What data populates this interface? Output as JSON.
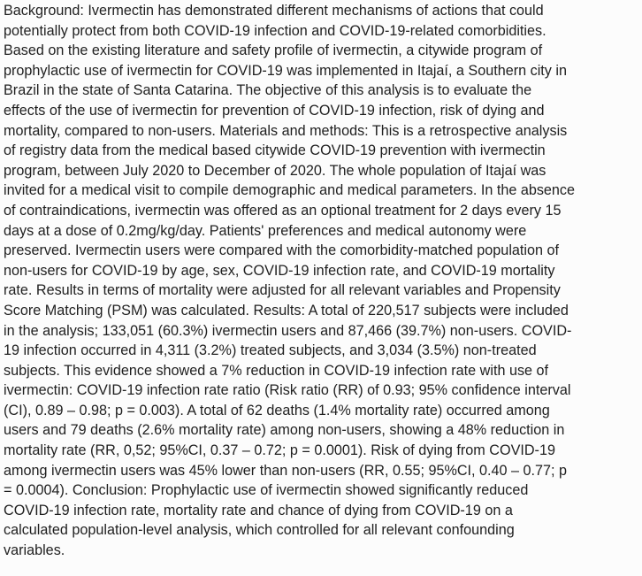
{
  "abstract": {
    "lines": [
      "Background: Ivermectin has demonstrated different mechanisms of actions that could",
      "potentially protect from both COVID-19 infection and COVID-19-related comorbidities.",
      "Based on the existing literature and safety profile of ivermectin, a citywide program of",
      "prophylactic use of ivermectin for COVID-19 was implemented in Itajaí, a Southern city in",
      "Brazil in the state of Santa Catarina. The objective of this analysis is to evaluate the",
      "effects of the use of ivermectin for prevention of COVID-19 infection, risk of dying and",
      "mortality, compared to non-users. Materials and methods: This is a retrospective analysis",
      "of registry data from the medical based citywide COVID-19 prevention with ivermectin",
      "program, between July 2020 to December of 2020. The whole population of Itajaí was",
      "invited for a medical visit to compile demographic and medical parameters. In the absence",
      "of contraindications, ivermectin was offered as an optional treatment for 2 days every 15",
      "days at a dose of 0.2mg/kg/day. Patients' preferences and medical autonomy were",
      "preserved. Ivermectin users were compared with the comorbidity-matched population of",
      "non-users for COVID-19 by age, sex, COVID-19 infection rate, and COVID-19 mortality",
      "rate. Results in terms of mortality were adjusted for all relevant variables and Propensity",
      "Score Matching (PSM) was calculated. Results: A total of 220,517 subjects were included",
      "in the analysis; 133,051 (60.3%) ivermectin users and 87,466 (39.7%) non-users. COVID-",
      "19 infection occurred in 4,311 (3.2%) treated subjects, and 3,034 (3.5%) non-treated",
      "subjects. This evidence showed a 7% reduction in COVID-19 infection rate with use of",
      "ivermectin: COVID-19 infection rate ratio (Risk ratio (RR) of 0.93; 95% confidence interval",
      "(CI), 0.89 – 0.98; p = 0.003). A total of 62 deaths (1.4% mortality rate) occurred among",
      "users and 79 deaths (2.6% mortality rate) among non-users, showing a 48% reduction in",
      "mortality rate (RR, 0,52; 95%CI, 0.37 – 0.72; p = 0.0001). Risk of dying from COVID-19",
      "among ivermectin users was 45% lower than non-users (RR, 0.55; 95%CI, 0.40 – 0.77; p",
      "= 0.0004). Conclusion: Prophylactic use of ivermectin showed significantly reduced",
      "COVID-19 infection rate, mortality rate and chance of dying from COVID-19 on a",
      "calculated population-level analysis, which controlled for all relevant confounding",
      "variables."
    ]
  }
}
